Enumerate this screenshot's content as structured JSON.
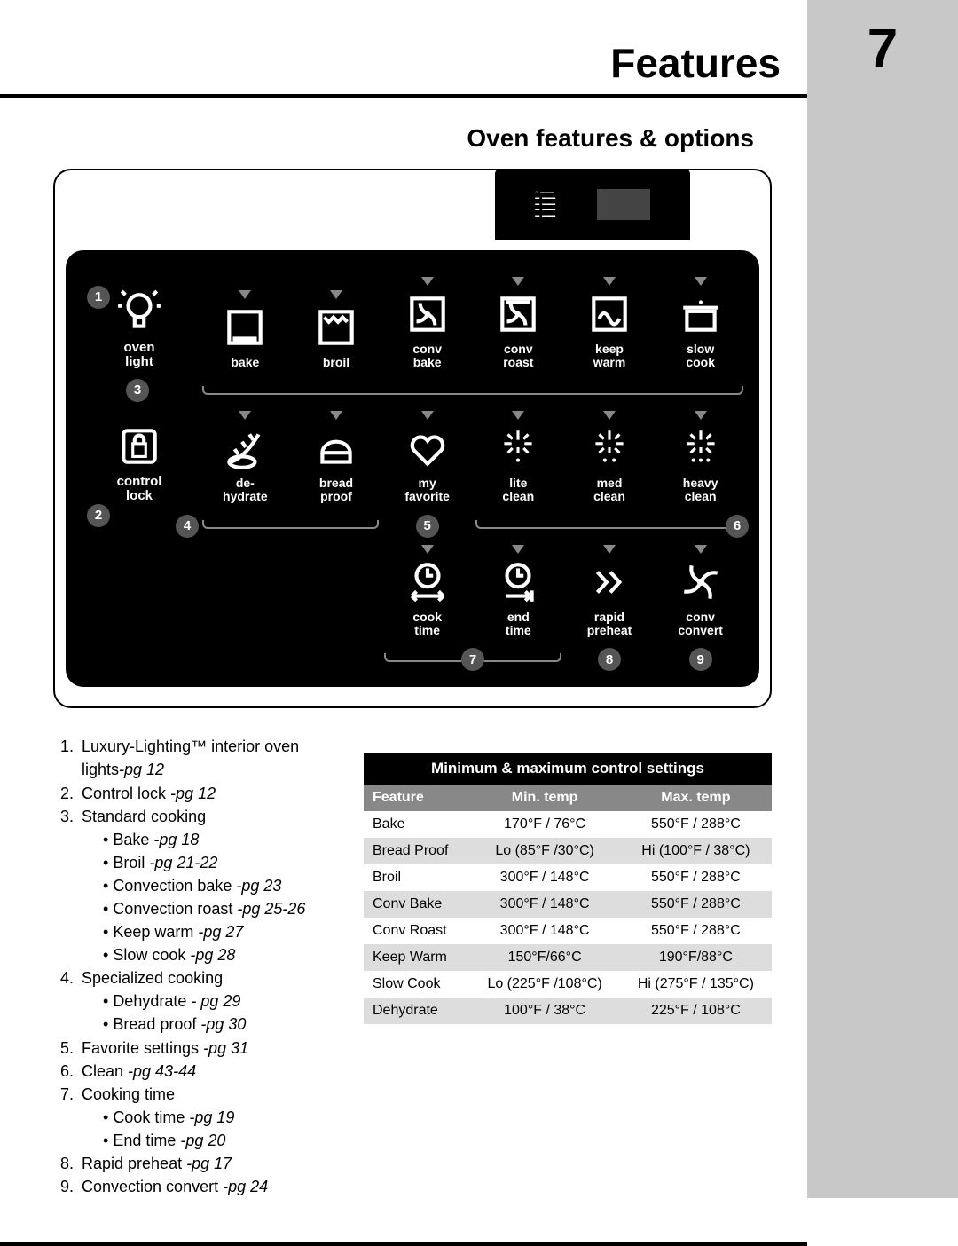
{
  "header": {
    "title": "Features",
    "page_number": "7"
  },
  "subtitle": "Oven features & options",
  "panel": {
    "left_col": [
      {
        "id": "oven-light",
        "label": "oven\nlight",
        "callout": "1",
        "icon": "bulb"
      },
      {
        "id": "control-lock",
        "label": "control\nlock",
        "callout": "2",
        "icon": "lock"
      }
    ],
    "row1_callout": "3",
    "row1": [
      {
        "id": "bake",
        "label": "bake",
        "icon": "box-lower"
      },
      {
        "id": "broil",
        "label": "broil",
        "icon": "box-upper"
      },
      {
        "id": "conv-bake",
        "label": "conv\nbake",
        "icon": "box-fan"
      },
      {
        "id": "conv-roast",
        "label": "conv\nroast",
        "icon": "box-fan2"
      },
      {
        "id": "keep-warm",
        "label": "keep\nwarm",
        "icon": "box-wave"
      },
      {
        "id": "slow-cook",
        "label": "slow\ncook",
        "icon": "pot"
      }
    ],
    "row2_callout": "4",
    "row2": [
      {
        "id": "dehydrate",
        "label": "de-\nhydrate",
        "icon": "leaf"
      },
      {
        "id": "bread-proof",
        "label": "bread\nproof",
        "icon": "bread"
      },
      {
        "id": "my-favorite",
        "label": "my\nfavorite",
        "icon": "heart",
        "callout": "5"
      },
      {
        "id": "lite-clean",
        "label": "lite\nclean",
        "icon": "spark1"
      },
      {
        "id": "med-clean",
        "label": "med\nclean",
        "icon": "spark2"
      },
      {
        "id": "heavy-clean",
        "label": "heavy\nclean",
        "icon": "spark3",
        "callout": "6"
      }
    ],
    "row3": [
      {
        "id": "cook-time",
        "label": "cook\ntime",
        "icon": "clock-lr",
        "callout": "7"
      },
      {
        "id": "end-time",
        "label": "end\ntime",
        "icon": "clock-r"
      },
      {
        "id": "rapid-preheat",
        "label": "rapid\npreheat",
        "icon": "chevrons",
        "callout": "8"
      },
      {
        "id": "conv-convert",
        "label": "conv\nconvert",
        "icon": "fan",
        "callout": "9"
      }
    ]
  },
  "featurelist": [
    {
      "n": "1",
      "t": "Luxury-Lighting™ interior oven lights",
      "pg": "-pg 12"
    },
    {
      "n": "2",
      "t": "Control lock ",
      "pg": "-pg 12"
    },
    {
      "n": "3",
      "t": "Standard cooking",
      "sub": [
        {
          "t": "Bake ",
          "pg": "-pg 18"
        },
        {
          "t": "Broil ",
          "pg": "-pg 21-22"
        },
        {
          "t": "Convection bake ",
          "pg": "-pg 23"
        },
        {
          "t": "Convection roast ",
          "pg": "-pg 25-26"
        },
        {
          "t": "Keep warm ",
          "pg": "-pg 27"
        },
        {
          "t": "Slow cook ",
          "pg": "-pg 28"
        }
      ]
    },
    {
      "n": "4",
      "t": "Specialized cooking",
      "sub": [
        {
          "t": "Dehydrate ",
          "pg": "- pg 29"
        },
        {
          "t": "Bread proof ",
          "pg": "-pg 30"
        }
      ]
    },
    {
      "n": "5",
      "t": "Favorite settings ",
      "pg": "-pg 31"
    },
    {
      "n": "6",
      "t": "Clean ",
      "pg": "-pg 43-44"
    },
    {
      "n": "7",
      "t": "Cooking time",
      "sub": [
        {
          "t": "Cook time ",
          "pg": "-pg 19"
        },
        {
          "t": "End time ",
          "pg": "-pg 20"
        }
      ]
    },
    {
      "n": "8",
      "t": " Rapid preheat ",
      "pg": "-pg 17"
    },
    {
      "n": "9",
      "t": "Convection convert ",
      "pg": "-pg 24"
    }
  ],
  "table": {
    "title": "Minimum & maximum control settings",
    "headers": [
      "Feature",
      "Min. temp",
      "Max. temp"
    ],
    "rows": [
      [
        "Bake",
        "170°F / 76°C",
        "550°F / 288°C"
      ],
      [
        "Bread Proof",
        "Lo (85°F /30°C)",
        "Hi (100°F / 38°C)"
      ],
      [
        "Broil",
        "300°F / 148°C",
        "550°F / 288°C"
      ],
      [
        "Conv Bake",
        "300°F / 148°C",
        "550°F / 288°C"
      ],
      [
        "Conv Roast",
        "300°F / 148°C",
        "550°F / 288°C"
      ],
      [
        "Keep Warm",
        "150°F/66°C",
        "190°F/88°C"
      ],
      [
        "Slow Cook",
        "Lo (225°F /108°C)",
        "Hi (275°F / 135°C)"
      ],
      [
        "Dehydrate",
        "100°F / 38°C",
        "225°F / 108°C"
      ]
    ]
  },
  "colors": {
    "page_bg": "#ffffff",
    "sidebar": "#c8c8c8",
    "panel": "#000000",
    "callout": "#555555",
    "tri": "#888888"
  }
}
